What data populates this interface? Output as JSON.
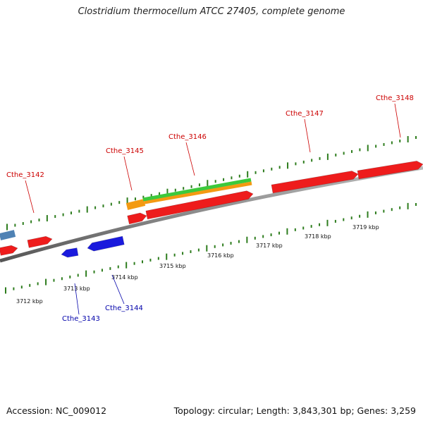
{
  "title": "Clostridium thermocellum ATCC 27405, complete genome",
  "footer": {
    "accession": "Accession: NC_009012",
    "topology": "Topology: circular; Length: 3,843,301 bp; Genes: 3,259"
  },
  "colors": {
    "backbone": "#8a8a8a",
    "forward_gene": "#ee1c1c",
    "reverse_gene": "#1a1add",
    "tick": "#2e7d1e",
    "green_feature": "#3cc93c",
    "orange_feature": "#f39a12",
    "steelblue_feature": "#4f82b4",
    "label_forward": "#cc0000",
    "label_reverse": "#0000aa"
  },
  "scale_labels": [
    "3712 kbp",
    "3713 kbp",
    "3714 kbp",
    "3715 kbp",
    "3716 kbp",
    "3717 kbp",
    "3718 kbp",
    "3719 kbp"
  ],
  "genes": [
    {
      "name": "Cthe_3142",
      "strand": "forward"
    },
    {
      "name": "Cthe_3143",
      "strand": "reverse"
    },
    {
      "name": "Cthe_3144",
      "strand": "reverse"
    },
    {
      "name": "Cthe_3145",
      "strand": "forward"
    },
    {
      "name": "Cthe_3146",
      "strand": "forward"
    },
    {
      "name": "Cthe_3147",
      "strand": "forward"
    },
    {
      "name": "Cthe_3148",
      "strand": "forward"
    }
  ]
}
